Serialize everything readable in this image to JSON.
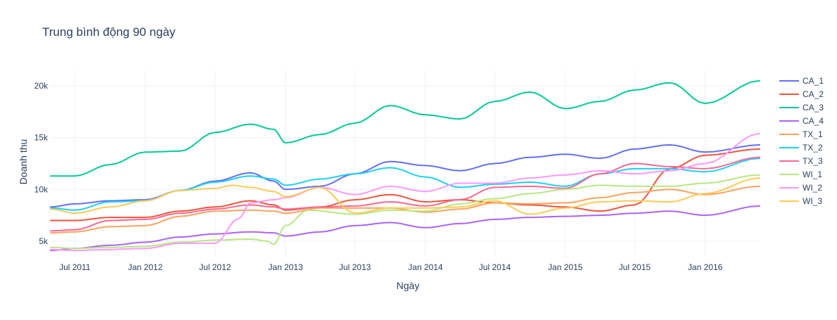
{
  "chart_data": {
    "type": "line",
    "title": "Trung bình động 90 ngày",
    "xlabel": "Ngày",
    "ylabel": "Doanh thu",
    "xlim": [
      "2011-04-29",
      "2016-05-22"
    ],
    "ylim": [
      3500,
      21500
    ],
    "x_ticks": [
      {
        "label": "Jul 2011",
        "date": "2011-07-01"
      },
      {
        "label": "Jan 2012",
        "date": "2012-01-01"
      },
      {
        "label": "Jul 2012",
        "date": "2012-07-01"
      },
      {
        "label": "Jan 2013",
        "date": "2013-01-01"
      },
      {
        "label": "Jul 2013",
        "date": "2013-07-01"
      },
      {
        "label": "Jan 2014",
        "date": "2014-01-01"
      },
      {
        "label": "Jul 2014",
        "date": "2014-07-01"
      },
      {
        "label": "Jan 2015",
        "date": "2015-01-01"
      },
      {
        "label": "Jul 2015",
        "date": "2015-07-01"
      },
      {
        "label": "Jan 2016",
        "date": "2016-01-01"
      }
    ],
    "y_ticks": [
      {
        "label": "5k",
        "value": 5000
      },
      {
        "label": "10k",
        "value": 10000
      },
      {
        "label": "15k",
        "value": 15000
      },
      {
        "label": "20k",
        "value": 20000
      }
    ],
    "grid": true,
    "legend_position": "right",
    "series": [
      {
        "name": "CA_1",
        "color": "#636efa",
        "points": [
          [
            "2011-04-29",
            8300
          ],
          [
            "2011-07-01",
            8600
          ],
          [
            "2011-10-01",
            8900
          ],
          [
            "2012-01-01",
            9000
          ],
          [
            "2012-04-01",
            9900
          ],
          [
            "2012-07-01",
            10800
          ],
          [
            "2012-10-01",
            11600
          ],
          [
            "2012-12-01",
            10800
          ],
          [
            "2013-01-01",
            10000
          ],
          [
            "2013-04-01",
            10300
          ],
          [
            "2013-07-01",
            11500
          ],
          [
            "2013-10-01",
            12700
          ],
          [
            "2014-01-01",
            12300
          ],
          [
            "2014-04-01",
            11800
          ],
          [
            "2014-07-01",
            12500
          ],
          [
            "2014-10-01",
            13100
          ],
          [
            "2015-01-01",
            13400
          ],
          [
            "2015-04-01",
            13000
          ],
          [
            "2015-07-01",
            13900
          ],
          [
            "2015-10-01",
            14300
          ],
          [
            "2016-01-01",
            13600
          ],
          [
            "2016-05-22",
            14300
          ]
        ]
      },
      {
        "name": "CA_2",
        "color": "#ef553b",
        "points": [
          [
            "2011-04-29",
            7000
          ],
          [
            "2011-07-01",
            7000
          ],
          [
            "2011-10-01",
            7300
          ],
          [
            "2012-01-01",
            7300
          ],
          [
            "2012-04-01",
            7900
          ],
          [
            "2012-07-01",
            8300
          ],
          [
            "2012-10-01",
            8900
          ],
          [
            "2012-12-01",
            8500
          ],
          [
            "2013-01-01",
            8000
          ],
          [
            "2013-04-01",
            8300
          ],
          [
            "2013-07-01",
            9000
          ],
          [
            "2013-10-01",
            9500
          ],
          [
            "2014-01-01",
            8800
          ],
          [
            "2014-04-01",
            9000
          ],
          [
            "2014-07-01",
            8700
          ],
          [
            "2014-10-01",
            8500
          ],
          [
            "2015-01-01",
            8300
          ],
          [
            "2015-04-01",
            7900
          ],
          [
            "2015-07-01",
            8500
          ],
          [
            "2015-10-01",
            12000
          ],
          [
            "2016-01-01",
            13300
          ],
          [
            "2016-05-22",
            13900
          ]
        ]
      },
      {
        "name": "CA_3",
        "color": "#00cc96",
        "points": [
          [
            "2011-04-29",
            11300
          ],
          [
            "2011-07-01",
            11300
          ],
          [
            "2011-10-01",
            12400
          ],
          [
            "2012-01-01",
            13600
          ],
          [
            "2012-04-01",
            13700
          ],
          [
            "2012-07-01",
            15500
          ],
          [
            "2012-10-01",
            16300
          ],
          [
            "2012-12-01",
            15800
          ],
          [
            "2013-01-01",
            14500
          ],
          [
            "2013-04-01",
            15300
          ],
          [
            "2013-07-01",
            16400
          ],
          [
            "2013-10-01",
            18100
          ],
          [
            "2014-01-01",
            17200
          ],
          [
            "2014-04-01",
            16800
          ],
          [
            "2014-07-01",
            18500
          ],
          [
            "2014-10-01",
            19400
          ],
          [
            "2015-01-01",
            17800
          ],
          [
            "2015-04-01",
            18500
          ],
          [
            "2015-07-01",
            19600
          ],
          [
            "2015-10-01",
            20300
          ],
          [
            "2016-01-01",
            18300
          ],
          [
            "2016-05-22",
            20500
          ]
        ]
      },
      {
        "name": "CA_4",
        "color": "#ab63fa",
        "points": [
          [
            "2011-04-29",
            4100
          ],
          [
            "2011-07-01",
            4300
          ],
          [
            "2011-10-01",
            4600
          ],
          [
            "2012-01-01",
            4900
          ],
          [
            "2012-04-01",
            5400
          ],
          [
            "2012-07-01",
            5700
          ],
          [
            "2012-10-01",
            5900
          ],
          [
            "2012-12-01",
            5800
          ],
          [
            "2013-01-01",
            5500
          ],
          [
            "2013-04-01",
            5900
          ],
          [
            "2013-07-01",
            6500
          ],
          [
            "2013-10-01",
            6800
          ],
          [
            "2014-01-01",
            6300
          ],
          [
            "2014-04-01",
            6700
          ],
          [
            "2014-07-01",
            7100
          ],
          [
            "2014-10-01",
            7300
          ],
          [
            "2015-01-01",
            7400
          ],
          [
            "2015-04-01",
            7500
          ],
          [
            "2015-07-01",
            7700
          ],
          [
            "2015-10-01",
            7900
          ],
          [
            "2016-01-01",
            7500
          ],
          [
            "2016-05-22",
            8400
          ]
        ]
      },
      {
        "name": "TX_1",
        "color": "#ffa15a",
        "points": [
          [
            "2011-04-29",
            5800
          ],
          [
            "2011-07-01",
            5900
          ],
          [
            "2011-10-01",
            6400
          ],
          [
            "2012-01-01",
            6500
          ],
          [
            "2012-04-01",
            7400
          ],
          [
            "2012-07-01",
            7900
          ],
          [
            "2012-10-01",
            8000
          ],
          [
            "2012-12-01",
            7900
          ],
          [
            "2013-01-01",
            7700
          ],
          [
            "2013-04-01",
            8200
          ],
          [
            "2013-07-01",
            8200
          ],
          [
            "2013-10-01",
            8200
          ],
          [
            "2014-01-01",
            7800
          ],
          [
            "2014-04-01",
            8100
          ],
          [
            "2014-07-01",
            8700
          ],
          [
            "2014-10-01",
            8600
          ],
          [
            "2015-01-01",
            8700
          ],
          [
            "2015-04-01",
            9200
          ],
          [
            "2015-07-01",
            9700
          ],
          [
            "2015-10-01",
            10000
          ],
          [
            "2016-01-01",
            9500
          ],
          [
            "2016-05-22",
            10300
          ]
        ]
      },
      {
        "name": "TX_2",
        "color": "#19d3f3",
        "points": [
          [
            "2011-04-29",
            8200
          ],
          [
            "2011-07-01",
            8000
          ],
          [
            "2011-10-01",
            8800
          ],
          [
            "2012-01-01",
            8900
          ],
          [
            "2012-04-01",
            9900
          ],
          [
            "2012-07-01",
            10700
          ],
          [
            "2012-10-01",
            11300
          ],
          [
            "2012-12-01",
            11000
          ],
          [
            "2013-01-01",
            10400
          ],
          [
            "2013-04-01",
            11000
          ],
          [
            "2013-07-01",
            11500
          ],
          [
            "2013-10-01",
            12100
          ],
          [
            "2014-01-01",
            11200
          ],
          [
            "2014-04-01",
            10200
          ],
          [
            "2014-07-01",
            10500
          ],
          [
            "2014-10-01",
            10700
          ],
          [
            "2015-01-01",
            10300
          ],
          [
            "2015-04-01",
            11500
          ],
          [
            "2015-07-01",
            12000
          ],
          [
            "2015-10-01",
            12000
          ],
          [
            "2016-01-01",
            11700
          ],
          [
            "2016-05-22",
            13000
          ]
        ]
      },
      {
        "name": "TX_3",
        "color": "#ff6692",
        "points": [
          [
            "2011-04-29",
            6000
          ],
          [
            "2011-07-01",
            6100
          ],
          [
            "2011-10-01",
            7000
          ],
          [
            "2012-01-01",
            7100
          ],
          [
            "2012-04-01",
            7700
          ],
          [
            "2012-07-01",
            8100
          ],
          [
            "2012-10-01",
            8500
          ],
          [
            "2012-12-01",
            8300
          ],
          [
            "2013-01-01",
            8100
          ],
          [
            "2013-04-01",
            8300
          ],
          [
            "2013-07-01",
            8400
          ],
          [
            "2013-10-01",
            8800
          ],
          [
            "2014-01-01",
            8400
          ],
          [
            "2014-04-01",
            9000
          ],
          [
            "2014-07-01",
            10200
          ],
          [
            "2014-10-01",
            10300
          ],
          [
            "2015-01-01",
            10100
          ],
          [
            "2015-04-01",
            11500
          ],
          [
            "2015-07-01",
            12500
          ],
          [
            "2015-10-01",
            12200
          ],
          [
            "2016-01-01",
            12000
          ],
          [
            "2016-05-22",
            13100
          ]
        ]
      },
      {
        "name": "WI_1",
        "color": "#b6e880",
        "points": [
          [
            "2011-04-29",
            4400
          ],
          [
            "2011-07-01",
            4300
          ],
          [
            "2011-10-01",
            4400
          ],
          [
            "2012-01-01",
            4500
          ],
          [
            "2012-04-01",
            4900
          ],
          [
            "2012-07-01",
            5100
          ],
          [
            "2012-10-01",
            5200
          ],
          [
            "2012-11-15",
            5000
          ],
          [
            "2012-12-01",
            4700
          ],
          [
            "2013-01-01",
            6500
          ],
          [
            "2013-03-01",
            8000
          ],
          [
            "2013-07-01",
            7600
          ],
          [
            "2013-10-01",
            8000
          ],
          [
            "2014-01-01",
            7900
          ],
          [
            "2014-04-01",
            8600
          ],
          [
            "2014-07-01",
            9100
          ],
          [
            "2014-10-01",
            9600
          ],
          [
            "2015-01-01",
            10000
          ],
          [
            "2015-04-01",
            10400
          ],
          [
            "2015-07-01",
            10300
          ],
          [
            "2015-10-01",
            10300
          ],
          [
            "2016-01-01",
            10600
          ],
          [
            "2016-05-22",
            11400
          ]
        ]
      },
      {
        "name": "WI_2",
        "color": "#ff97ff",
        "points": [
          [
            "2011-04-29",
            4200
          ],
          [
            "2011-07-01",
            4100
          ],
          [
            "2011-10-01",
            4200
          ],
          [
            "2012-01-01",
            4300
          ],
          [
            "2012-04-01",
            4800
          ],
          [
            "2012-07-01",
            4800
          ],
          [
            "2012-09-01",
            7200
          ],
          [
            "2012-10-01",
            8700
          ],
          [
            "2012-12-01",
            9000
          ],
          [
            "2013-01-01",
            9200
          ],
          [
            "2013-04-01",
            10200
          ],
          [
            "2013-07-01",
            9500
          ],
          [
            "2013-10-01",
            10300
          ],
          [
            "2014-01-01",
            9800
          ],
          [
            "2014-04-01",
            10600
          ],
          [
            "2014-07-01",
            10600
          ],
          [
            "2014-10-01",
            11100
          ],
          [
            "2015-01-01",
            11400
          ],
          [
            "2015-04-01",
            11800
          ],
          [
            "2015-07-01",
            11500
          ],
          [
            "2015-10-01",
            11800
          ],
          [
            "2016-01-01",
            12500
          ],
          [
            "2016-05-22",
            15400
          ]
        ]
      },
      {
        "name": "WI_3",
        "color": "#fecb52",
        "points": [
          [
            "2011-04-29",
            8100
          ],
          [
            "2011-07-01",
            7700
          ],
          [
            "2011-10-01",
            8300
          ],
          [
            "2012-01-01",
            8900
          ],
          [
            "2012-04-01",
            9900
          ],
          [
            "2012-07-01",
            10100
          ],
          [
            "2012-08-15",
            10400
          ],
          [
            "2012-10-01",
            10200
          ],
          [
            "2012-12-01",
            9800
          ],
          [
            "2013-01-01",
            9300
          ],
          [
            "2013-04-01",
            10200
          ],
          [
            "2013-07-01",
            7700
          ],
          [
            "2013-10-01",
            8200
          ],
          [
            "2014-01-01",
            8200
          ],
          [
            "2014-04-01",
            8300
          ],
          [
            "2014-07-01",
            8900
          ],
          [
            "2014-10-01",
            7600
          ],
          [
            "2015-01-01",
            8200
          ],
          [
            "2015-04-01",
            8800
          ],
          [
            "2015-07-01",
            8900
          ],
          [
            "2015-10-01",
            8800
          ],
          [
            "2016-01-01",
            9600
          ],
          [
            "2016-05-22",
            11100
          ]
        ]
      }
    ]
  }
}
